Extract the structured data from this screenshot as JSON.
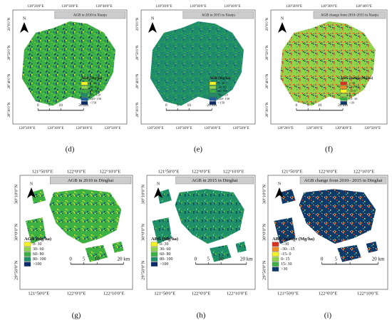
{
  "panels": [
    {
      "label": "(d)",
      "title": "AGB in 2010 in Xianju",
      "north": "N",
      "top_ticks": [
        "120°20'0\"E",
        "120°30'0\"E",
        "120°40'0\"E"
      ],
      "bottom_ticks": [
        "120°20'0\"E",
        "120°30'0\"E",
        "120°40'0\"E",
        "120°50'0\"E"
      ],
      "left_ticks": [
        "29°0'0\"N",
        "28°50'0\"N",
        "28°40'0\"N",
        "28°30'0\"N"
      ],
      "legend_title": "AGB (Mg/ha)",
      "legend": [
        {
          "label": "0- 30",
          "color": "#f2f224"
        },
        {
          "label": "30- 60",
          "color": "#8fd44a"
        },
        {
          "label": "60- 90",
          "color": "#3cb043"
        },
        {
          "label": "90 - 120",
          "color": "#1f8f6a"
        },
        {
          "label": "120- 150",
          "color": "#1f5fa0"
        },
        {
          "label": ">150",
          "color": "#0b2a6b"
        }
      ],
      "scale": [
        "0",
        "5",
        "10",
        "20 km"
      ]
    },
    {
      "label": "(e)",
      "title": "AGB in 2015 in Xianju",
      "north": "N",
      "top_ticks": [
        "120°20'0\"E",
        "120°30'0\"E",
        "120°40'0\"E"
      ],
      "bottom_ticks": [
        "120°20'0\"E",
        "120°30'0\"E",
        "120°40'0\"E",
        "120°50'0\"E"
      ],
      "left_ticks": [
        "29°0'0\"N",
        "28°50'0\"N",
        "28°40'0\"N",
        "28°30'0\"N"
      ],
      "legend_title": "AGB (Mg/ha)",
      "legend": [
        {
          "label": "0- 30",
          "color": "#f2f224"
        },
        {
          "label": "30- 60",
          "color": "#8fd44a"
        },
        {
          "label": "60- 90",
          "color": "#3cb043"
        },
        {
          "label": "90- 120",
          "color": "#1f8f6a"
        },
        {
          "label": "120- 150",
          "color": "#1f5fa0"
        },
        {
          "label": ">150",
          "color": "#0b2a6b"
        }
      ],
      "scale": [
        "0",
        "5",
        "10",
        "20 km"
      ]
    },
    {
      "label": "(f)",
      "title": "AGB change from 2010~2015 in Xianju",
      "north": "N",
      "top_ticks": [
        "120°20'0\"E",
        "120°30'0\"E",
        "120°40'0\"E"
      ],
      "bottom_ticks": [
        "120°20'0\"E",
        "120°30'0\"E",
        "120°40'0\"E",
        "120°50'0\"E"
      ],
      "left_ticks": [
        "29°0'0\"N",
        "28°50'0\"N",
        "28°40'0\"N",
        "28°30'0\"N"
      ],
      "legend_title": "ABG change (Mg/ha)",
      "legend": [
        {
          "label": "<-30",
          "color": "#d7301f"
        },
        {
          "label": "-30- -15",
          "color": "#f28c28"
        },
        {
          "label": "-15-0",
          "color": "#f2f224"
        },
        {
          "label": "0- 15",
          "color": "#8fd44a"
        },
        {
          "label": "15- 30",
          "color": "#3cb043"
        },
        {
          "label": ">30",
          "color": "#0b3a6b"
        }
      ],
      "scale": [
        "0",
        "5",
        "10",
        "20 km"
      ]
    },
    {
      "label": "(g)",
      "title": "AGB in 2010 in Dinghai",
      "north": "N",
      "top_ticks": [
        "121°50'0\"E",
        "122°0'0\"E",
        "122°10'0\"E"
      ],
      "bottom_ticks": [
        "121°50'0\"E",
        "122°0'0\"E",
        "122°10'0\"E"
      ],
      "left_ticks": [
        "30°10'0\"N",
        "30°0'0\"N",
        "29°50'0\"N"
      ],
      "legend_title": "AGB (Mg/ha)",
      "legend": [
        {
          "label": "0- 30",
          "color": "#f2f224"
        },
        {
          "label": "30- 60",
          "color": "#8fd44a"
        },
        {
          "label": "60- 80",
          "color": "#3cb043"
        },
        {
          "label": "80- 100",
          "color": "#1f8f6a"
        },
        {
          "label": ">100",
          "color": "#0b2a6b"
        }
      ],
      "scale": [
        "0",
        "5",
        "10",
        "20 km"
      ]
    },
    {
      "label": "(h)",
      "title": "AGB in 2015 in Dinghai",
      "north": "N",
      "top_ticks": [
        "121°50'0\"E",
        "122°0'0\"E",
        "122°10'0\"E"
      ],
      "bottom_ticks": [
        "121°50'0\"E",
        "122°0'0\"E",
        "122°10'0\"E"
      ],
      "left_ticks": [
        "30°10'0\"N",
        "30°0'0\"N",
        "29°50'0\"N"
      ],
      "legend_title": "ABG (Mg/ha)",
      "legend": [
        {
          "label": "0- 30",
          "color": "#f2f224"
        },
        {
          "label": "30- 60",
          "color": "#8fd44a"
        },
        {
          "label": "60- 80",
          "color": "#3cb043"
        },
        {
          "label": "80- 100",
          "color": "#1f8f6a"
        },
        {
          "label": ">100",
          "color": "#0b2a6b"
        }
      ],
      "scale": [
        "0",
        "5",
        "10",
        "20 km"
      ]
    },
    {
      "label": "(i)",
      "title": "AGB change from 2010– 2015 in Dinghai",
      "north": "N",
      "top_ticks": [
        "121°50'0\"E",
        "122°0'0\"E",
        "122°10'0\"E"
      ],
      "bottom_ticks": [
        "121°50'0\"E",
        "122°0'0\"E",
        "122°10'0\"E"
      ],
      "left_ticks": [
        "30°10'0\"N",
        "30°0'0\"N",
        "29°50'0\"N"
      ],
      "legend_title": "ABG change (Mg/ha)",
      "legend": [
        {
          "label": "<-30",
          "color": "#d7301f"
        },
        {
          "label": "-30- -15",
          "color": "#f28c28"
        },
        {
          "label": "-15- 0",
          "color": "#f2f224"
        },
        {
          "label": "0- 15",
          "color": "#8fd44a"
        },
        {
          "label": "15- 30",
          "color": "#3cb043"
        },
        {
          "label": ">30",
          "color": "#0b3a6b"
        }
      ],
      "scale": [
        "0",
        "5",
        "10",
        "20 km"
      ]
    }
  ]
}
